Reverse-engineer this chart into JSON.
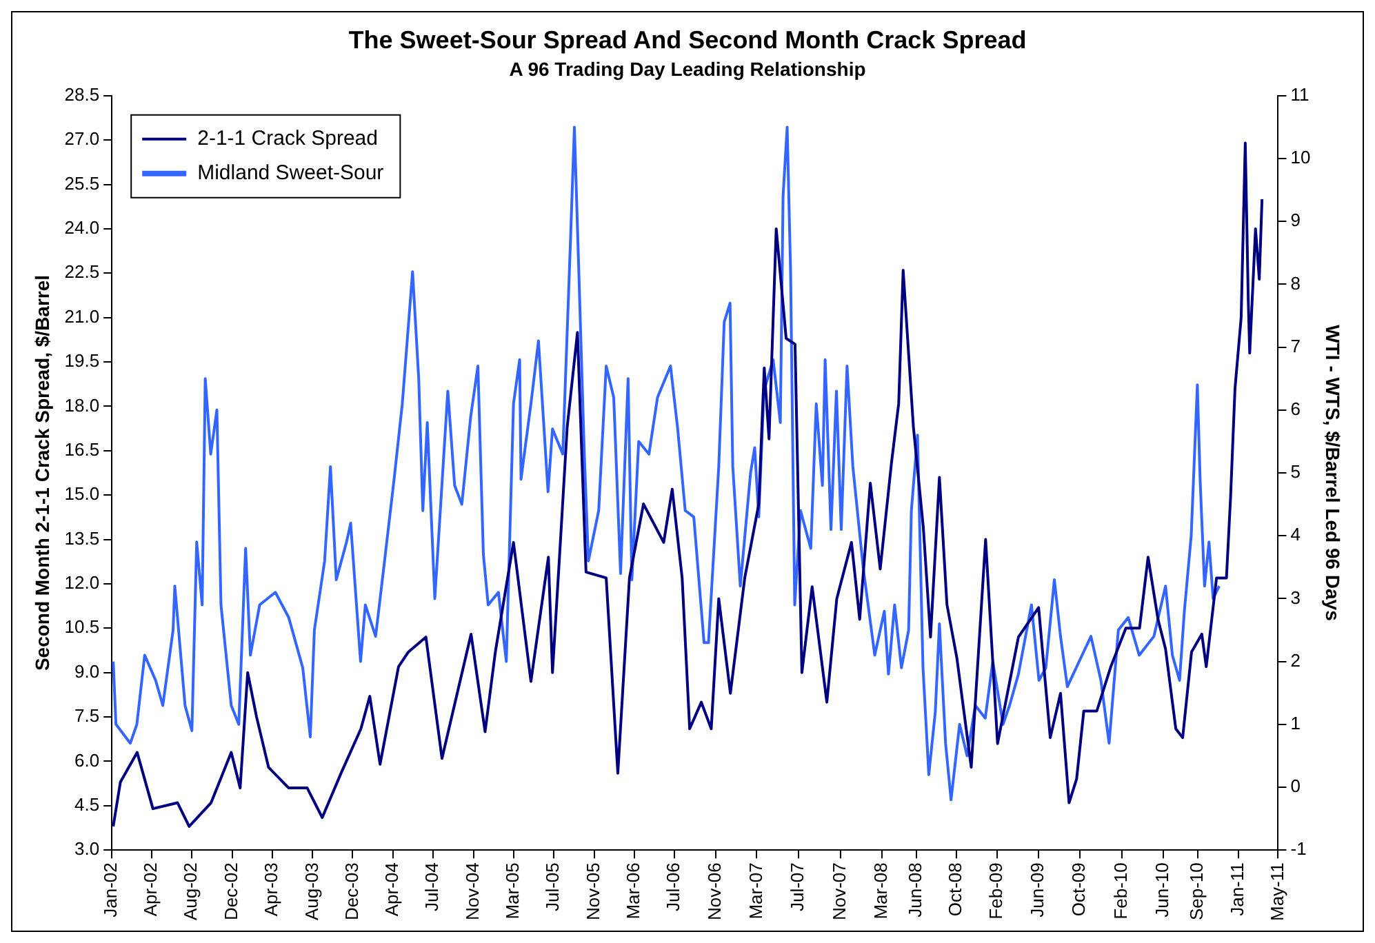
{
  "chart_data": {
    "type": "line",
    "title": "The Sweet-Sour Spread And Second Month Crack Spread",
    "subtitle": "A 96 Trading Day Leading Relationship",
    "ylabel": "Second Month 2-1-1 Crack Spread, $/Barrel",
    "y2label": "WTI - WTS, $/Barrel Led 96 Days",
    "xlim": [
      "2002-01-01",
      "2011-05-03"
    ],
    "xticks": [
      {
        "value": "2002-01-01",
        "label": "Jan-02"
      },
      {
        "value": "2002-04-27",
        "label": "Apr-02"
      },
      {
        "value": "2002-08-23",
        "label": "Aug-02"
      },
      {
        "value": "2002-12-19",
        "label": "Dec-02"
      },
      {
        "value": "2003-04-15",
        "label": "Apr-03"
      },
      {
        "value": "2003-08-11",
        "label": "Aug-03"
      },
      {
        "value": "2003-12-06",
        "label": "Dec-03"
      },
      {
        "value": "2004-04-02",
        "label": "Apr-04"
      },
      {
        "value": "2004-07-28",
        "label": "Jul-04"
      },
      {
        "value": "2004-11-24",
        "label": "Nov-04"
      },
      {
        "value": "2005-03-20",
        "label": "Mar-05"
      },
      {
        "value": "2005-07-16",
        "label": "Jul-05"
      },
      {
        "value": "2005-11-12",
        "label": "Nov-05"
      },
      {
        "value": "2006-03-08",
        "label": "Mar-06"
      },
      {
        "value": "2006-07-04",
        "label": "Jul-06"
      },
      {
        "value": "2006-11-01",
        "label": "Nov-06"
      },
      {
        "value": "2007-03-01",
        "label": "Mar-07"
      },
      {
        "value": "2007-07-01",
        "label": "Jul-07"
      },
      {
        "value": "2007-11-01",
        "label": "Nov-07"
      },
      {
        "value": "2008-03-01",
        "label": "Mar-08"
      },
      {
        "value": "2008-06-10",
        "label": "Jun-08"
      },
      {
        "value": "2008-10-05",
        "label": "Oct-08"
      },
      {
        "value": "2009-02-01",
        "label": "Feb-09"
      },
      {
        "value": "2009-06-01",
        "label": "Jun-09"
      },
      {
        "value": "2009-10-01",
        "label": "Oct-09"
      },
      {
        "value": "2010-02-01",
        "label": "Feb-10"
      },
      {
        "value": "2010-06-01",
        "label": "Jun-10"
      },
      {
        "value": "2010-09-10",
        "label": "Sep-10"
      },
      {
        "value": "2011-01-07",
        "label": "Jan-11"
      },
      {
        "value": "2011-05-03",
        "label": "May-11"
      }
    ],
    "ylim": [
      3,
      28.5
    ],
    "yticks": [
      {
        "value": 3,
        "label": "3.0"
      },
      {
        "value": 4.5,
        "label": "4.5"
      },
      {
        "value": 6,
        "label": "6.0"
      },
      {
        "value": 7.5,
        "label": "7.5"
      },
      {
        "value": 9,
        "label": "9.0"
      },
      {
        "value": 10.5,
        "label": "10.5"
      },
      {
        "value": 12,
        "label": "12.0"
      },
      {
        "value": 13.5,
        "label": "13.5"
      },
      {
        "value": 15,
        "label": "15.0"
      },
      {
        "value": 16.5,
        "label": "16.5"
      },
      {
        "value": 18,
        "label": "18.0"
      },
      {
        "value": 19.5,
        "label": "19.5"
      },
      {
        "value": 21,
        "label": "21.0"
      },
      {
        "value": 22.5,
        "label": "22.5"
      },
      {
        "value": 24,
        "label": "24.0"
      },
      {
        "value": 25.5,
        "label": "25.5"
      },
      {
        "value": 27,
        "label": "27.0"
      },
      {
        "value": 28.5,
        "label": "28.5"
      }
    ],
    "y2lim": [
      -1,
      11
    ],
    "y2ticks": [
      -1,
      0,
      1,
      2,
      3,
      4,
      5,
      6,
      7,
      8,
      9,
      10,
      11
    ],
    "legend": "top left",
    "marker": "none",
    "line_style": "solid",
    "grid": false,
    "series": [
      {
        "name": "2-1-1 Crack Spread",
        "color": "#000080",
        "x": [
          "2002-01-05",
          "2002-01-26",
          "2002-03-16",
          "2002-05-01",
          "2002-07-12",
          "2002-08-15",
          "2002-10-18",
          "2002-12-16",
          "2003-01-11",
          "2003-02-02",
          "2003-02-28",
          "2003-04-04",
          "2003-06-02",
          "2003-07-26",
          "2003-09-08",
          "2003-11-02",
          "2003-12-30",
          "2004-01-25",
          "2004-02-24",
          "2004-04-18",
          "2004-05-17",
          "2004-07-07",
          "2004-08-23",
          "2004-11-16",
          "2004-12-27",
          "2005-01-26",
          "2005-03-20",
          "2005-05-10",
          "2005-06-30",
          "2005-07-12",
          "2005-08-03",
          "2005-08-24",
          "2005-09-23",
          "2005-10-18",
          "2005-12-16",
          "2006-01-19",
          "2006-02-22",
          "2006-04-04",
          "2006-06-02",
          "2006-06-27",
          "2006-07-26",
          "2006-08-17",
          "2006-09-20",
          "2006-10-19",
          "2006-11-10",
          "2006-12-14",
          "2007-01-25",
          "2007-03-07",
          "2007-03-23",
          "2007-04-06",
          "2007-04-27",
          "2007-05-26",
          "2007-06-21",
          "2007-07-11",
          "2007-08-10",
          "2007-09-22",
          "2007-10-21",
          "2007-12-03",
          "2007-12-27",
          "2008-01-27",
          "2008-02-25",
          "2008-03-29",
          "2008-04-19",
          "2008-05-02",
          "2008-06-01",
          "2008-06-30",
          "2008-07-21",
          "2008-08-16",
          "2008-09-07",
          "2008-10-06",
          "2008-11-17",
          "2008-12-29",
          "2009-02-02",
          "2009-04-04",
          "2009-06-02",
          "2009-07-06",
          "2009-08-05",
          "2009-08-30",
          "2009-09-21",
          "2009-10-12",
          "2009-11-19",
          "2009-12-30",
          "2010-02-12",
          "2010-03-24",
          "2010-04-18",
          "2010-05-17",
          "2010-06-08",
          "2010-07-08",
          "2010-07-28",
          "2010-08-23",
          "2010-09-22",
          "2010-10-05",
          "2010-11-04",
          "2010-12-03",
          "2010-12-15",
          "2010-12-28",
          "2011-01-15",
          "2011-01-27",
          "2011-02-05",
          "2011-02-09",
          "2011-02-26",
          "2011-03-09",
          "2011-03-17"
        ],
        "values": [
          3.8,
          5.3,
          6.3,
          4.4,
          4.6,
          3.8,
          4.6,
          6.3,
          5.1,
          9.0,
          7.5,
          5.8,
          5.1,
          5.1,
          4.1,
          5.6,
          7.1,
          8.2,
          5.9,
          9.2,
          9.7,
          10.2,
          6.1,
          10.3,
          7.0,
          9.7,
          13.4,
          8.7,
          12.9,
          9.0,
          13.2,
          17.3,
          20.5,
          12.4,
          12.2,
          5.6,
          12.2,
          14.7,
          13.4,
          15.2,
          12.2,
          7.1,
          8.0,
          7.1,
          11.5,
          8.3,
          12.2,
          14.7,
          19.3,
          16.9,
          24.0,
          20.3,
          20.1,
          9.0,
          11.9,
          8.0,
          11.5,
          13.4,
          10.8,
          15.4,
          12.5,
          16.1,
          18.1,
          22.6,
          17.3,
          13.9,
          10.2,
          15.6,
          11.3,
          9.5,
          5.8,
          13.5,
          6.6,
          10.2,
          11.2,
          6.8,
          8.3,
          4.6,
          5.4,
          7.7,
          7.7,
          9.2,
          10.5,
          10.5,
          12.9,
          10.8,
          9.8,
          7.1,
          6.8,
          9.7,
          10.3,
          9.2,
          12.2,
          12.2,
          14.9,
          18.6,
          21.0,
          26.9,
          21.5,
          19.8,
          24.0,
          22.3,
          25.0
        ]
      },
      {
        "name": "Midland Sweet-Sour",
        "color": "#3366ff",
        "axis": "y2",
        "x": [
          "2002-01-05",
          "2002-01-13",
          "2002-02-24",
          "2002-03-15",
          "2002-04-07",
          "2002-05-09",
          "2002-05-30",
          "2002-06-29",
          "2002-07-04",
          "2002-08-03",
          "2002-08-23",
          "2002-09-06",
          "2002-09-22",
          "2002-10-01",
          "2002-10-17",
          "2002-11-04",
          "2002-11-16",
          "2002-12-16",
          "2003-01-07",
          "2003-01-27",
          "2003-02-10",
          "2003-03-09",
          "2003-04-24",
          "2003-06-02",
          "2003-07-13",
          "2003-08-04",
          "2003-08-16",
          "2003-09-15",
          "2003-10-02",
          "2003-10-19",
          "2003-11-18",
          "2003-11-30",
          "2003-12-29",
          "2004-01-12",
          "2004-02-11",
          "2004-03-06",
          "2004-04-05",
          "2004-04-29",
          "2004-05-29",
          "2004-06-16",
          "2004-06-28",
          "2004-07-11",
          "2004-08-02",
          "2004-09-09",
          "2004-09-29",
          "2004-10-20",
          "2004-11-15",
          "2004-12-06",
          "2004-12-22",
          "2005-01-05",
          "2005-02-04",
          "2005-02-27",
          "2005-03-20",
          "2005-04-07",
          "2005-04-11",
          "2005-05-10",
          "2005-06-01",
          "2005-06-29",
          "2005-07-12",
          "2005-08-11",
          "2005-09-02",
          "2005-09-14",
          "2005-09-27",
          "2005-10-13",
          "2005-10-25",
          "2005-11-24",
          "2005-12-16",
          "2006-01-07",
          "2006-01-27",
          "2006-02-18",
          "2006-03-01",
          "2006-03-21",
          "2006-04-20",
          "2006-05-15",
          "2006-06-22",
          "2006-07-13",
          "2006-08-04",
          "2006-08-29",
          "2006-09-28",
          "2006-10-11",
          "2006-11-10",
          "2006-11-26",
          "2006-12-13",
          "2006-12-21",
          "2007-01-12",
          "2007-02-11",
          "2007-02-23",
          "2007-03-07",
          "2007-03-22",
          "2007-04-18",
          "2007-05-09",
          "2007-05-17",
          "2007-05-29",
          "2007-06-08",
          "2007-06-20",
          "2007-07-07",
          "2007-08-06",
          "2007-08-22",
          "2007-09-09",
          "2007-09-17",
          "2007-10-04",
          "2007-10-20",
          "2007-11-03",
          "2007-11-20",
          "2007-12-07",
          "2008-01-06",
          "2008-02-09",
          "2008-03-08",
          "2008-03-20",
          "2008-04-07",
          "2008-04-27",
          "2008-05-18",
          "2008-05-26",
          "2008-06-13",
          "2008-06-29",
          "2008-07-16",
          "2008-08-04",
          "2008-08-16",
          "2008-09-03",
          "2008-09-19",
          "2008-10-14",
          "2008-11-05",
          "2008-11-29",
          "2008-12-28",
          "2009-01-19",
          "2009-02-18",
          "2009-03-09",
          "2009-04-04",
          "2009-05-12",
          "2009-06-03",
          "2009-06-23",
          "2009-07-18",
          "2009-08-05",
          "2009-08-25",
          "2009-10-07",
          "2009-11-02",
          "2009-12-01",
          "2009-12-25",
          "2010-01-21",
          "2010-02-19",
          "2010-03-23",
          "2010-05-05",
          "2010-06-08",
          "2010-06-28",
          "2010-07-19",
          "2010-08-02",
          "2010-08-22",
          "2010-09-09",
          "2010-09-17",
          "2010-09-30",
          "2010-10-13",
          "2010-10-25",
          "2010-11-12"
        ],
        "values": [
          2.0,
          1.0,
          0.7,
          1.0,
          2.1,
          1.7,
          1.3,
          2.5,
          3.2,
          1.3,
          0.9,
          3.9,
          2.9,
          6.5,
          5.3,
          6.0,
          2.9,
          1.3,
          1.0,
          3.8,
          2.1,
          2.9,
          3.1,
          2.7,
          1.9,
          0.8,
          2.5,
          3.6,
          5.1,
          3.3,
          3.9,
          4.2,
          2.0,
          2.9,
          2.4,
          3.5,
          4.9,
          6.1,
          8.2,
          6.5,
          4.4,
          5.8,
          3.0,
          6.3,
          4.8,
          4.5,
          5.9,
          6.7,
          3.7,
          2.9,
          3.1,
          2.0,
          6.1,
          6.8,
          4.9,
          6.1,
          7.1,
          4.7,
          5.7,
          5.3,
          8.6,
          10.5,
          8.2,
          5.3,
          3.6,
          4.4,
          6.7,
          6.2,
          3.4,
          6.5,
          3.3,
          5.5,
          5.3,
          6.2,
          6.7,
          5.7,
          4.4,
          4.3,
          2.3,
          2.3,
          5.1,
          7.4,
          7.7,
          5.1,
          3.2,
          5.0,
          5.4,
          4.3,
          6.3,
          6.8,
          5.8,
          9.4,
          10.5,
          8.2,
          2.9,
          4.4,
          3.8,
          6.1,
          4.8,
          6.8,
          4.1,
          6.3,
          4.1,
          6.7,
          5.1,
          3.5,
          2.1,
          2.8,
          1.8,
          2.9,
          1.9,
          2.5,
          4.4,
          5.6,
          1.9,
          0.2,
          1.2,
          2.6,
          0.7,
          -0.2,
          1.0,
          0.5,
          1.3,
          1.1,
          2.0,
          1.0,
          1.3,
          1.8,
          2.9,
          1.7,
          1.9,
          3.3,
          2.4,
          1.6,
          2.1,
          2.4,
          1.7,
          0.7,
          2.5,
          2.7,
          2.1,
          2.4,
          3.2,
          2.1,
          1.7,
          2.8,
          4.0,
          6.4,
          4.9,
          3.2,
          3.9,
          3.0,
          3.2
        ]
      }
    ]
  }
}
